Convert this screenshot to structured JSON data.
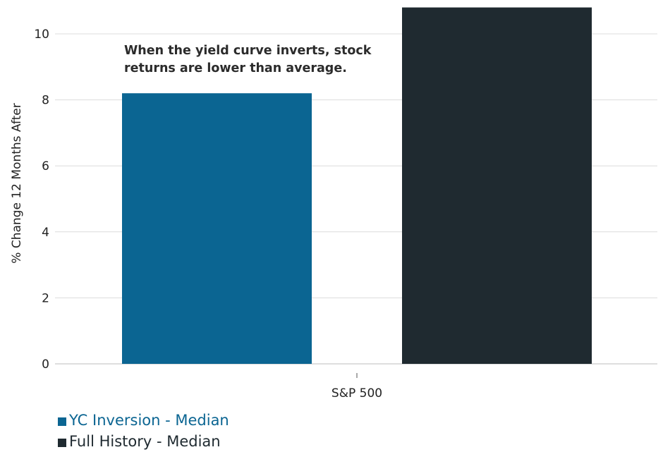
{
  "chart_data": {
    "type": "bar",
    "categories": [
      "S&P 500"
    ],
    "series": [
      {
        "name": "YC Inversion - Median",
        "values": [
          8.2
        ],
        "color": "#0b6592"
      },
      {
        "name": "Full History - Median",
        "values": [
          10.8
        ],
        "color": "#1f2a30"
      }
    ],
    "ylabel": "% Change 12 Months After",
    "xlabel": "",
    "ylim": [
      0,
      10.9
    ],
    "yticks": [
      0,
      2,
      4,
      6,
      8,
      10
    ],
    "ytick_labels": [
      "0",
      "2",
      "4",
      "6",
      "8",
      "10"
    ],
    "grid": true,
    "annotation": [
      "When the yield curve inverts, stock",
      "returns are lower than average."
    ],
    "legend_position": "bottom-left"
  }
}
